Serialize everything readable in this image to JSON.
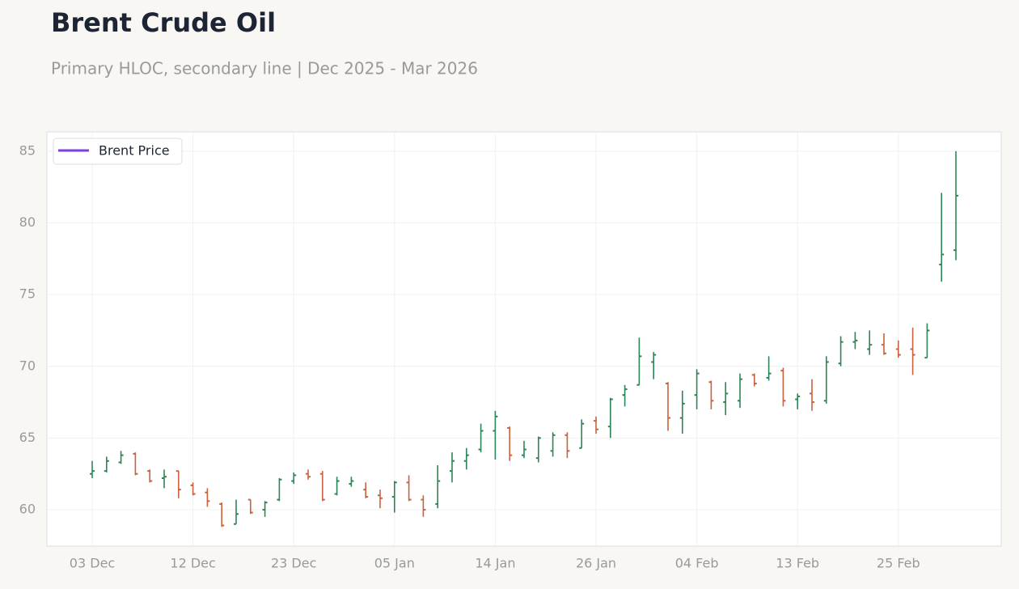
{
  "chart_data": {
    "type": "ohlc",
    "title": "Brent Crude Oil",
    "subtitle": "Primary HLOC, secondary line | Dec 2025 - Mar 2026",
    "categories": [
      "03 Dec",
      null,
      null,
      null,
      null,
      null,
      null,
      "12 Dec",
      null,
      null,
      null,
      null,
      null,
      null,
      "23 Dec",
      null,
      null,
      null,
      null,
      null,
      null,
      "05 Jan",
      null,
      null,
      null,
      null,
      null,
      null,
      "14 Jan",
      null,
      null,
      null,
      null,
      null,
      null,
      "26 Jan",
      null,
      null,
      null,
      null,
      null,
      null,
      "04 Feb",
      null,
      null,
      null,
      null,
      null,
      null,
      "13 Feb",
      null,
      null,
      null,
      null,
      null,
      null,
      "25 Feb",
      null,
      null,
      null,
      null
    ],
    "open": [
      62.5,
      62.7,
      63.3,
      63.9,
      62.7,
      62.2,
      62.7,
      61.7,
      61.2,
      60.4,
      59.0,
      60.7,
      60.0,
      60.7,
      62.0,
      62.5,
      62.5,
      61.1,
      61.8,
      61.4,
      61.0,
      60.9,
      61.9,
      60.7,
      60.4,
      62.7,
      63.4,
      64.2,
      65.5,
      65.7,
      63.8,
      63.6,
      64.1,
      65.2,
      64.3,
      66.2,
      65.8,
      68.0,
      68.7,
      70.3,
      68.8,
      66.4,
      68.0,
      68.9,
      67.5,
      67.6,
      69.4,
      69.2,
      69.7,
      67.7,
      68.1,
      67.6,
      70.2,
      71.7,
      71.2,
      71.5,
      71.2,
      71.2,
      70.6,
      77.1,
      78.1
    ],
    "high": [
      63.4,
      63.7,
      64.1,
      64.0,
      62.8,
      62.8,
      62.7,
      61.9,
      61.5,
      60.5,
      60.7,
      60.7,
      60.6,
      62.2,
      62.6,
      62.8,
      62.7,
      62.3,
      62.3,
      61.9,
      61.4,
      62.0,
      62.4,
      61.0,
      63.1,
      64.0,
      64.3,
      66.0,
      66.9,
      65.8,
      64.8,
      65.1,
      65.4,
      65.4,
      66.3,
      66.5,
      67.8,
      68.7,
      72.0,
      71.0,
      68.9,
      68.3,
      69.8,
      69.0,
      68.9,
      69.5,
      69.5,
      70.7,
      69.9,
      68.1,
      69.1,
      70.7,
      72.1,
      72.4,
      72.5,
      72.3,
      71.8,
      72.7,
      73.0,
      82.1,
      85.0
    ],
    "low": [
      62.2,
      62.6,
      63.2,
      62.4,
      61.9,
      61.5,
      60.8,
      61.0,
      60.2,
      58.8,
      59.0,
      59.7,
      59.5,
      60.6,
      61.8,
      62.1,
      60.6,
      61.0,
      61.6,
      60.8,
      60.1,
      59.8,
      60.6,
      59.5,
      60.1,
      61.9,
      62.8,
      64.0,
      63.5,
      63.4,
      63.6,
      63.3,
      63.7,
      63.6,
      64.3,
      65.3,
      65.0,
      67.2,
      68.7,
      69.1,
      65.5,
      65.3,
      67.0,
      67.0,
      66.6,
      67.1,
      68.6,
      69.0,
      67.2,
      67.0,
      66.9,
      67.4,
      70.0,
      71.2,
      70.8,
      70.8,
      70.6,
      69.4,
      70.6,
      75.9,
      77.4
    ],
    "close": [
      62.7,
      63.4,
      63.8,
      62.5,
      62.0,
      62.3,
      61.4,
      61.1,
      60.6,
      58.9,
      59.7,
      59.8,
      60.5,
      62.1,
      62.4,
      62.3,
      60.7,
      62.0,
      62.0,
      60.9,
      60.8,
      61.9,
      60.7,
      60.0,
      62.0,
      63.4,
      63.8,
      65.5,
      66.5,
      63.8,
      64.2,
      65.0,
      65.2,
      64.1,
      66.0,
      65.6,
      67.7,
      68.4,
      70.7,
      70.8,
      66.4,
      67.4,
      69.5,
      67.6,
      68.1,
      69.1,
      68.8,
      69.5,
      67.6,
      67.9,
      67.5,
      70.3,
      71.7,
      71.8,
      71.5,
      70.9,
      70.8,
      70.8,
      72.5,
      77.8,
      81.9
    ],
    "up_color": "#2e8555",
    "down_color": "#c8623f",
    "line_series": {
      "name": "Brent Price",
      "color": "#7b3fe4"
    },
    "legend": "upper-left",
    "ylim": [
      57.46,
      86.35
    ],
    "yticks": [
      60,
      65,
      70,
      75,
      80,
      85
    ],
    "grid": true
  }
}
